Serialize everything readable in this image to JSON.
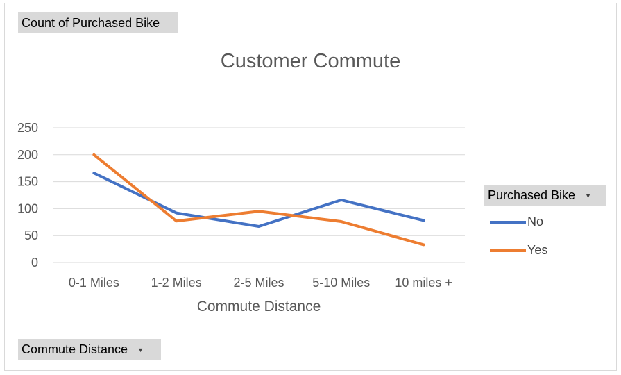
{
  "pivot": {
    "value_field": "Count of Purchased Bike",
    "axis_field": "Commute Distance",
    "legend_field": "Purchased Bike",
    "dropdown_icon": "chevron-down-icon"
  },
  "colors": {
    "No": "#4472c4",
    "Yes": "#ed7d31",
    "grid": "#d9d9d9"
  },
  "chart_data": {
    "type": "line",
    "title": "Customer Commute",
    "xlabel": "Commute Distance",
    "ylabel": "",
    "categories": [
      "0-1 Miles",
      "1-2 Miles",
      "2-5 Miles",
      "5-10 Miles",
      "10 miles +"
    ],
    "series": [
      {
        "name": "No",
        "values": [
          166,
          92,
          67,
          116,
          78
        ]
      },
      {
        "name": "Yes",
        "values": [
          200,
          77,
          95,
          76,
          33
        ]
      }
    ],
    "ylim": [
      0,
      250
    ],
    "yticks": [
      "0",
      "50",
      "100",
      "150",
      "200",
      "250"
    ],
    "grid": true,
    "legend_position": "right"
  }
}
